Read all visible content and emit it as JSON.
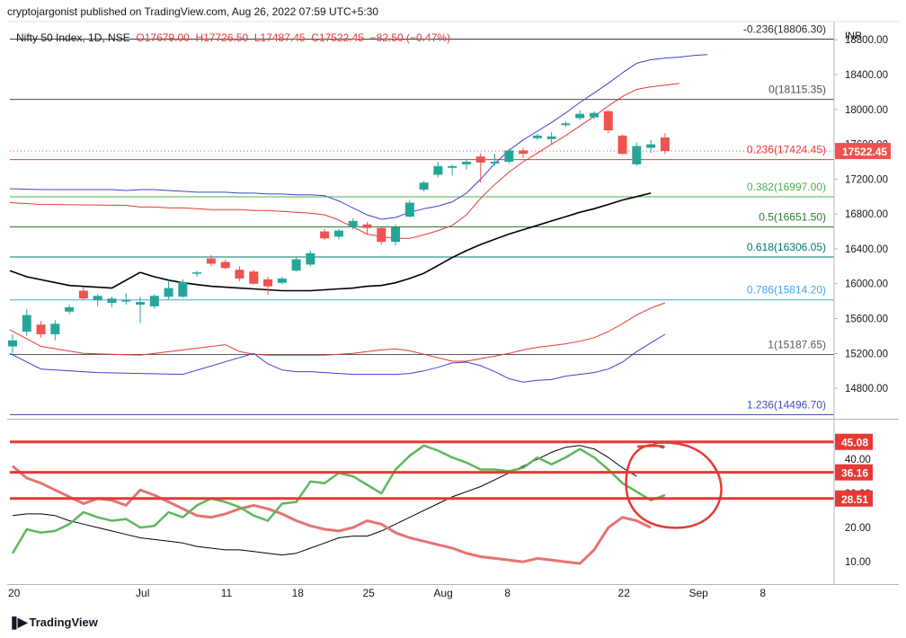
{
  "publisher": "cryptojargonist published on TradingView.com, Aug 26, 2022 07:59 UTC+5:30",
  "header": {
    "symbol": "Nifty 50 Index, 1D, NSE",
    "open": "O17679.00",
    "high": "H17726.50",
    "low": "L17487.45",
    "close": "C17522.45",
    "change": "−82.50 (−0.47%)"
  },
  "currency": "INR",
  "footer_brand": "TradingView",
  "colors": {
    "bullish": "#26a69a",
    "bearish": "#ef5350",
    "bollinger_outer": "#3f3fd0",
    "bollinger_inner": "#e53935",
    "moving_average": "#000000",
    "rsi_green": "#5cb85c",
    "rsi_red": "#e57373",
    "annotation": "#e53935"
  },
  "chart_data": [
    {
      "type": "candlestick",
      "ylim": [
        14450,
        19050
      ],
      "y_ticks": [
        18800,
        18400,
        18000,
        17600,
        17200,
        16800,
        16400,
        16000,
        15600,
        15200,
        14800
      ],
      "y_tick_labels": [
        "18800.00",
        "18400.00",
        "18000.00",
        "17600.00",
        "17200.00",
        "16800.00",
        "16400.00",
        "16000.00",
        "15600.00",
        "15200.00",
        "14800.00"
      ],
      "x_ticks": [
        {
          "index": 0,
          "label": "20"
        },
        {
          "index": 9,
          "label": "Jul"
        },
        {
          "index": 15,
          "label": "11"
        },
        {
          "index": 20,
          "label": "18"
        },
        {
          "index": 25,
          "label": "25"
        },
        {
          "index": 30,
          "label": "Aug"
        },
        {
          "index": 35,
          "label": "8"
        },
        {
          "index": 43,
          "label": "22"
        },
        {
          "index": 48,
          "label": "Sep"
        },
        {
          "index": 53,
          "label": "8"
        }
      ],
      "current_price": "17522.45",
      "candles": [
        {
          "o": 15280,
          "h": 15420,
          "l": 15200,
          "c": 15350
        },
        {
          "o": 15450,
          "h": 15710,
          "l": 15400,
          "c": 15640
        },
        {
          "o": 15530,
          "h": 15570,
          "l": 15380,
          "c": 15420
        },
        {
          "o": 15420,
          "h": 15580,
          "l": 15350,
          "c": 15540
        },
        {
          "o": 15680,
          "h": 15760,
          "l": 15650,
          "c": 15730
        },
        {
          "o": 15920,
          "h": 15960,
          "l": 15810,
          "c": 15830
        },
        {
          "o": 15810,
          "h": 15880,
          "l": 15740,
          "c": 15860
        },
        {
          "o": 15780,
          "h": 15850,
          "l": 15730,
          "c": 15830
        },
        {
          "o": 15800,
          "h": 15890,
          "l": 15760,
          "c": 15810
        },
        {
          "o": 15760,
          "h": 15850,
          "l": 15550,
          "c": 15790
        },
        {
          "o": 15740,
          "h": 15880,
          "l": 15710,
          "c": 15860
        },
        {
          "o": 15850,
          "h": 16040,
          "l": 15820,
          "c": 15950
        },
        {
          "o": 15850,
          "h": 16050,
          "l": 15840,
          "c": 16020
        },
        {
          "o": 16120,
          "h": 16150,
          "l": 16080,
          "c": 16130
        },
        {
          "o": 16290,
          "h": 16330,
          "l": 16200,
          "c": 16230
        },
        {
          "o": 16250,
          "h": 16280,
          "l": 16170,
          "c": 16180
        },
        {
          "o": 16160,
          "h": 16200,
          "l": 16030,
          "c": 16060
        },
        {
          "o": 16140,
          "h": 16160,
          "l": 15990,
          "c": 16000
        },
        {
          "o": 16050,
          "h": 16080,
          "l": 15870,
          "c": 15970
        },
        {
          "o": 16010,
          "h": 16080,
          "l": 15990,
          "c": 16060
        },
        {
          "o": 16150,
          "h": 16300,
          "l": 16140,
          "c": 16280
        },
        {
          "o": 16220,
          "h": 16380,
          "l": 16200,
          "c": 16350
        },
        {
          "o": 16600,
          "h": 16630,
          "l": 16500,
          "c": 16520
        },
        {
          "o": 16540,
          "h": 16630,
          "l": 16510,
          "c": 16610
        },
        {
          "o": 16650,
          "h": 16750,
          "l": 16620,
          "c": 16720
        },
        {
          "o": 16680,
          "h": 16710,
          "l": 16560,
          "c": 16640
        },
        {
          "o": 16640,
          "h": 16650,
          "l": 16450,
          "c": 16480
        },
        {
          "o": 16480,
          "h": 16680,
          "l": 16440,
          "c": 16650
        },
        {
          "o": 16770,
          "h": 16960,
          "l": 16760,
          "c": 16930
        },
        {
          "o": 17080,
          "h": 17180,
          "l": 17060,
          "c": 17160
        },
        {
          "o": 17250,
          "h": 17400,
          "l": 17220,
          "c": 17350
        },
        {
          "o": 17330,
          "h": 17370,
          "l": 17240,
          "c": 17350
        },
        {
          "o": 17370,
          "h": 17420,
          "l": 17310,
          "c": 17400
        },
        {
          "o": 17460,
          "h": 17500,
          "l": 17160,
          "c": 17390
        },
        {
          "o": 17380,
          "h": 17490,
          "l": 17360,
          "c": 17400
        },
        {
          "o": 17400,
          "h": 17550,
          "l": 17380,
          "c": 17530
        },
        {
          "o": 17530,
          "h": 17560,
          "l": 17440,
          "c": 17490
        },
        {
          "o": 17670,
          "h": 17720,
          "l": 17650,
          "c": 17700
        },
        {
          "o": 17660,
          "h": 17740,
          "l": 17600,
          "c": 17690
        },
        {
          "o": 17820,
          "h": 17860,
          "l": 17800,
          "c": 17840
        },
        {
          "o": 17900,
          "h": 17990,
          "l": 17880,
          "c": 17950
        },
        {
          "o": 17910,
          "h": 17980,
          "l": 17890,
          "c": 17960
        },
        {
          "o": 17980,
          "h": 17990,
          "l": 17730,
          "c": 17760
        },
        {
          "o": 17700,
          "h": 17710,
          "l": 17480,
          "c": 17490
        },
        {
          "o": 17370,
          "h": 17620,
          "l": 17350,
          "c": 17580
        },
        {
          "o": 17560,
          "h": 17650,
          "l": 17500,
          "c": 17600
        },
        {
          "o": 17679,
          "h": 17726.5,
          "l": 17487.45,
          "c": 17522.45
        }
      ],
      "bollinger_upper": [
        17080,
        17070,
        17080,
        17080,
        17070,
        17060,
        17050,
        17050,
        17050,
        17040,
        17040,
        17030,
        17030,
        17020,
        17020,
        17010,
        16950,
        16870,
        16790,
        16740,
        16760,
        16820,
        16860,
        16890,
        16940,
        17040,
        17200,
        17380,
        17530,
        17650,
        17750,
        17850,
        17960,
        18080,
        18190,
        18300,
        18420,
        18530,
        18570,
        18590,
        18600,
        18620,
        18630
      ],
      "bollinger_upper_start": 7,
      "bollinger_mid": [
        16900,
        16880,
        16880,
        16870,
        16870,
        16860,
        16850,
        16850,
        16850,
        16840,
        16840,
        16830,
        16820,
        16810,
        16790,
        16730,
        16650,
        16570,
        16540,
        16520,
        16520,
        16560,
        16610,
        16670,
        16790,
        16980,
        17140,
        17280,
        17400,
        17500,
        17600,
        17700,
        17810,
        17920,
        18040,
        18150,
        18230,
        18260,
        18280,
        18300
      ],
      "bollinger_mid_start": 8,
      "moving_average": [
        16130,
        16080,
        16040,
        16010,
        15990,
        15970,
        15960,
        15950,
        15940,
        15930,
        15920,
        15920,
        15920,
        15930,
        15940,
        15950,
        15970,
        15980,
        16010,
        16060,
        16120,
        16210,
        16300,
        16380,
        16450,
        16510,
        16570,
        16620,
        16670,
        16720,
        16770,
        16820,
        16860,
        16910,
        16960,
        17000,
        17040
      ],
      "moving_average_start": 9,
      "bollinger_lower_inner": [
        15300,
        15220,
        15190,
        15180,
        15180,
        15180,
        15180,
        15180,
        15190,
        15200,
        15220,
        15240,
        15250,
        15230,
        15190,
        15150,
        15110,
        15110,
        15140,
        15170,
        15200,
        15240,
        15270,
        15290,
        15310,
        15340,
        15380,
        15450,
        15540,
        15640,
        15720,
        15780
      ],
      "bollinger_lower_inner_start": 15,
      "bollinger_lower": [
        15200,
        15080,
        15010,
        14990,
        14990,
        14980,
        14970,
        14960,
        14960,
        14960,
        14960,
        14970,
        15000,
        15040,
        15090,
        15100,
        15060,
        14990,
        14910,
        14870,
        14890,
        14900,
        14940,
        14960,
        14980,
        15020,
        15100,
        15220,
        15320,
        15420
      ],
      "bollinger_lower_start": 17,
      "fibonacci": [
        {
          "label": "-0.236(18806.30)",
          "value": 18806.3,
          "color": "#2a2e39"
        },
        {
          "label": "0(18115.35)",
          "value": 18115.35,
          "color": "#4a4e59"
        },
        {
          "label": "0.236(17424.45)",
          "value": 17424.45,
          "color": "#e53935"
        },
        {
          "label": "0.382(16997.00)",
          "value": 16997.0,
          "color": "#4caf50"
        },
        {
          "label": "0.5(16651.50)",
          "value": 16651.5,
          "color": "#2e7d32"
        },
        {
          "label": "0.618(16306.05)",
          "value": 16306.05,
          "color": "#00796b"
        },
        {
          "label": "0.786(15814.20)",
          "value": 15814.2,
          "color": "#42a5f5"
        },
        {
          "label": "1(15187.65)",
          "value": 15187.65,
          "color": "#555a66"
        },
        {
          "label": "1.236(14496.70)",
          "value": 14496.7,
          "color": "#3f51b5"
        }
      ]
    },
    {
      "type": "line",
      "ylim": [
        4,
        50
      ],
      "y_ticks": [
        40,
        30,
        20,
        10
      ],
      "y_tick_labels": [
        "40.00",
        "30.00",
        "20.00",
        "10.00"
      ],
      "levels": [
        {
          "value": 45.08,
          "label": "45.08"
        },
        {
          "value": 36.16,
          "label": "36.16"
        },
        {
          "value": 28.51,
          "label": "28.51"
        }
      ],
      "green_line": [
        12.5,
        19.5,
        18.5,
        19.0,
        21.0,
        24.5,
        23.0,
        22.0,
        22.5,
        20.0,
        20.5,
        24.5,
        23.0,
        26.5,
        28.5,
        27.5,
        26.0,
        23.5,
        22.0,
        27.0,
        27.5,
        33.5,
        33.0,
        36.0,
        35.0,
        32.5,
        30.0,
        37.0,
        41.0,
        44.0,
        42.5,
        40.5,
        39.0,
        37.0,
        37.0,
        36.5,
        37.5,
        40.5,
        38.5,
        40.5,
        43.0,
        40.5,
        37.0,
        33.0,
        30.5,
        28.0,
        29.5
      ],
      "red_line": [
        38.0,
        34.5,
        33.0,
        31.0,
        29.0,
        27.0,
        28.5,
        28.0,
        26.5,
        31.0,
        29.5,
        27.5,
        25.5,
        23.5,
        23.0,
        24.0,
        25.5,
        26.5,
        25.5,
        24.0,
        22.0,
        20.5,
        19.5,
        19.0,
        20.0,
        22.0,
        21.0,
        18.5,
        17.0,
        16.0,
        15.0,
        14.0,
        12.5,
        11.5,
        11.0,
        10.5,
        10.0,
        11.0,
        10.5,
        10.0,
        9.5,
        13.5,
        20.0,
        23.0,
        22.0,
        20.0
      ],
      "black_line": [
        23.5,
        24.0,
        24.0,
        23.5,
        22.0,
        21.0,
        20.0,
        19.0,
        18.0,
        17.0,
        16.5,
        16.0,
        15.5,
        14.5,
        14.0,
        13.5,
        13.5,
        13.0,
        12.5,
        12.0,
        12.5,
        14.0,
        15.5,
        17.0,
        17.5,
        17.5,
        19.0,
        21.0,
        23.0,
        25.0,
        27.0,
        29.0,
        30.5,
        32.0,
        34.0,
        36.0,
        38.0,
        40.0,
        42.0,
        43.5,
        44.0,
        43.0,
        40.5,
        37.5,
        35.0
      ]
    }
  ]
}
